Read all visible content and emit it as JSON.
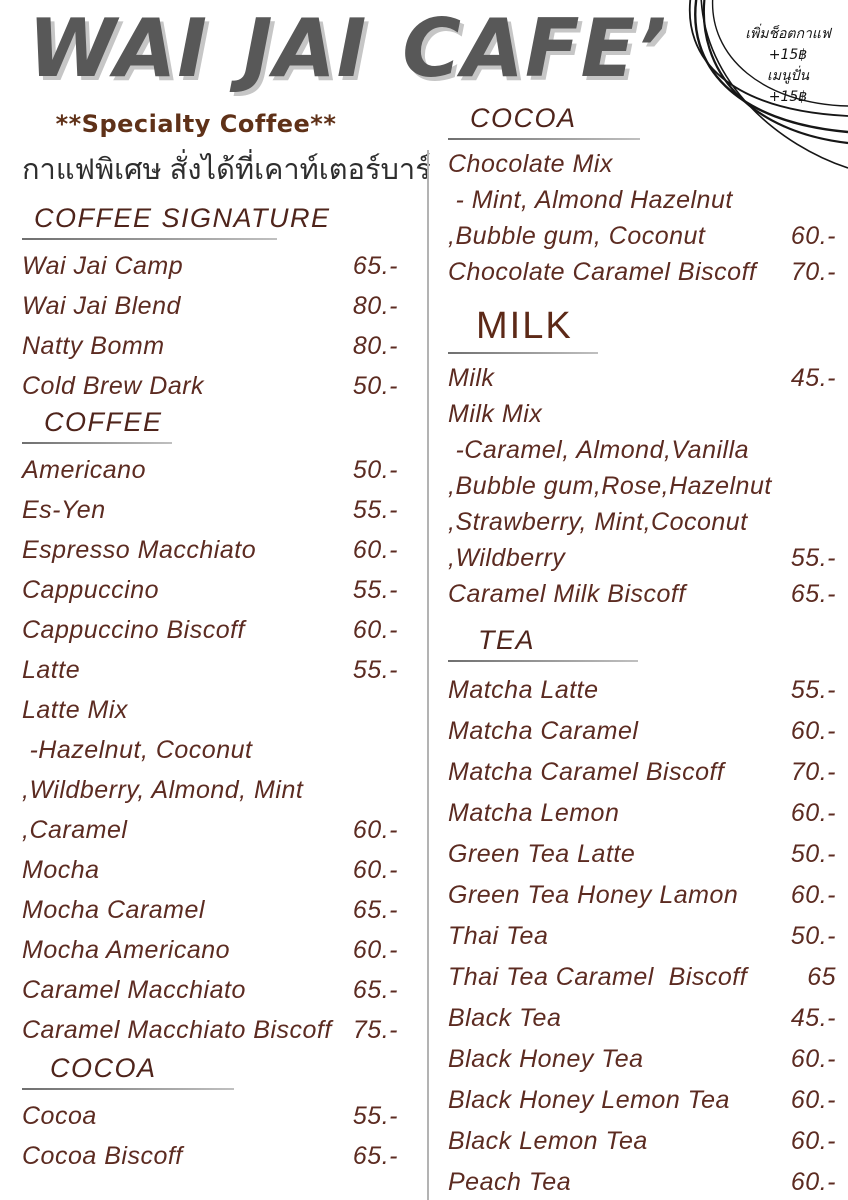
{
  "page_title": "WAI JAI CAFE’",
  "surcharge_note": {
    "lines": [
      "เพิ่มช็อตกาแฟ",
      "+15฿",
      "เมนูปั่น",
      "+15฿"
    ]
  },
  "intro": {
    "specialty_heading": "**Specialty Coffee**",
    "thai_subtitle": "กาแฟพิเศษ สั่งได้ที่เคาท์เตอร์บาร์"
  },
  "menu": {
    "columns": [
      {
        "side": "left",
        "sections": [
          {
            "id": "coffee-signature",
            "heading": "COFFEE SIGNATURE",
            "row_spacing": "normal",
            "items": [
              {
                "name": "Wai Jai Camp",
                "price": "65.-"
              },
              {
                "name": "Wai Jai Blend",
                "price": "80.-"
              },
              {
                "name": "Natty Bomm",
                "price": "80.-"
              },
              {
                "name": "Cold Brew Dark",
                "price": "50.-"
              }
            ]
          },
          {
            "id": "coffee",
            "heading": "COFFEE",
            "row_spacing": "normal",
            "items": [
              {
                "name": "Americano",
                "price": "50.-"
              },
              {
                "name": "Es-Yen",
                "price": "55.-"
              },
              {
                "name": "Espresso Macchiato",
                "price": "60.-"
              },
              {
                "name": "Cappuccino",
                "price": "55.-"
              },
              {
                "name": "Cappuccino Biscoff",
                "price": "60.-"
              },
              {
                "name": "Latte",
                "price": "55.-"
              },
              {
                "name": "Latte Mix",
                "price": ""
              },
              {
                "name": " -Hazelnut, Coconut",
                "price": ""
              },
              {
                "name": ",Wildberry, Almond, Mint",
                "price": ""
              },
              {
                "name": ",Caramel",
                "price": "60.-"
              },
              {
                "name": "Mocha",
                "price": "60.-"
              },
              {
                "name": "Mocha Caramel",
                "price": "65.-"
              },
              {
                "name": "Mocha Americano",
                "price": "60.-"
              },
              {
                "name": "Caramel Macchiato",
                "price": "65.-"
              },
              {
                "name": "Caramel Macchiato Biscoff",
                "price": "75.-"
              }
            ]
          },
          {
            "id": "cocoa-left",
            "heading": "COCOA",
            "row_spacing": "normal",
            "items": [
              {
                "name": "Cocoa",
                "price": "55.-"
              },
              {
                "name": "Cocoa Biscoff",
                "price": "65.-"
              }
            ]
          }
        ]
      },
      {
        "side": "right",
        "sections": [
          {
            "id": "cocoa-right",
            "heading": "COCOA",
            "row_spacing": "tight",
            "items": [
              {
                "name": "Chocolate Mix",
                "price": ""
              },
              {
                "name": " - Mint, Almond Hazelnut",
                "price": ""
              },
              {
                "name": ",Bubble gum, Coconut",
                "price": "60.-"
              },
              {
                "name": "Chocolate Caramel Biscoff",
                "price": "70.-"
              }
            ]
          },
          {
            "id": "milk",
            "heading": "MILK",
            "row_spacing": "tight",
            "items": [
              {
                "name": "Milk",
                "price": "45.-"
              },
              {
                "name": "Milk Mix",
                "price": ""
              },
              {
                "name": " -Caramel, Almond,Vanilla",
                "price": ""
              },
              {
                "name": ",Bubble gum,Rose,Hazelnut",
                "price": ""
              },
              {
                "name": ",Strawberry, Mint,Coconut",
                "price": ""
              },
              {
                "name": ",Wildberry",
                "price": "55.-"
              },
              {
                "name": "Caramel Milk Biscoff",
                "price": "65.-"
              }
            ]
          },
          {
            "id": "tea",
            "heading": "TEA",
            "row_spacing": "normal",
            "items": [
              {
                "name": "Matcha Latte",
                "price": "55.-"
              },
              {
                "name": "Matcha Caramel",
                "price": "60.-"
              },
              {
                "name": "Matcha Caramel Biscoff",
                "price": "70.-"
              },
              {
                "name": "Matcha Lemon",
                "price": "60.-"
              },
              {
                "name": "Green Tea Latte",
                "price": "50.-"
              },
              {
                "name": "Green Tea Honey Lamon",
                "price": "60.-"
              },
              {
                "name": "Thai Tea",
                "price": "50.-"
              },
              {
                "name": "Thai Tea Caramel  Biscoff",
                "price": "65"
              },
              {
                "name": "Black Tea",
                "price": "45.-"
              },
              {
                "name": "Black Honey Tea",
                "price": "60.-"
              },
              {
                "name": "Black Honey Lemon Tea",
                "price": "60.-"
              },
              {
                "name": "Black Lemon Tea",
                "price": "60.-"
              },
              {
                "name": "Peach Tea",
                "price": "60.-"
              }
            ]
          }
        ]
      }
    ]
  },
  "colors": {
    "menu_text": "#5c2b21",
    "heading_text": "#4f241b",
    "specialty_heading": "#5f3118",
    "title_text": "#585858",
    "title_shadow": "#c6c6c6",
    "thai_text": "#2e2e2e",
    "rule_gray": "#8f8f8f",
    "decor_black": "#161616",
    "background": "#ffffff"
  }
}
